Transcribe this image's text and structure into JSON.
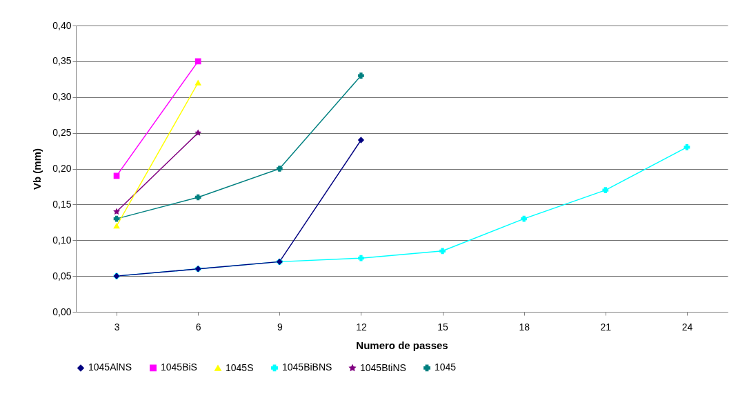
{
  "chart_data": {
    "type": "line",
    "xlabel": "Numero de passes",
    "ylabel": "Vb (mm)",
    "categories": [
      "3",
      "6",
      "9",
      "12",
      "15",
      "18",
      "21",
      "24"
    ],
    "ylim": [
      0,
      0.4
    ],
    "yticks": [
      {
        "value": 0,
        "label": "0,00"
      },
      {
        "value": 0.05,
        "label": "0,05"
      },
      {
        "value": 0.1,
        "label": "0,10"
      },
      {
        "value": 0.15,
        "label": "0,15"
      },
      {
        "value": 0.2,
        "label": "0,20"
      },
      {
        "value": 0.25,
        "label": "0,25"
      },
      {
        "value": 0.3,
        "label": "0,30"
      },
      {
        "value": 0.35,
        "label": "0,35"
      },
      {
        "value": 0.4,
        "label": "0,40"
      }
    ],
    "grid": "y",
    "legend": "bottom",
    "series": [
      {
        "name": "1045AlNS",
        "color": "#000080",
        "marker": "diamond",
        "values": [
          0.05,
          0.06,
          0.07,
          0.24,
          null,
          null,
          null,
          null
        ]
      },
      {
        "name": "1045BiS",
        "color": "#ff00ff",
        "marker": "square",
        "values": [
          0.19,
          0.35,
          null,
          null,
          null,
          null,
          null,
          null
        ]
      },
      {
        "name": "1045S",
        "color": "#ffff00",
        "marker": "triangle",
        "values": [
          0.12,
          0.32,
          null,
          null,
          null,
          null,
          null,
          null
        ]
      },
      {
        "name": "1045BiBNS",
        "color": "#00ffff",
        "marker": "cross",
        "values": [
          0.05,
          0.06,
          0.07,
          0.075,
          0.085,
          0.13,
          0.17,
          0.23
        ]
      },
      {
        "name": "1045BtiNS",
        "color": "#800080",
        "marker": "star",
        "values": [
          0.14,
          0.25,
          null,
          null,
          null,
          null,
          null,
          null
        ]
      },
      {
        "name": "1045",
        "color": "#008080",
        "marker": "cross",
        "values": [
          0.13,
          0.16,
          0.2,
          0.33,
          null,
          null,
          null,
          null
        ]
      }
    ]
  }
}
